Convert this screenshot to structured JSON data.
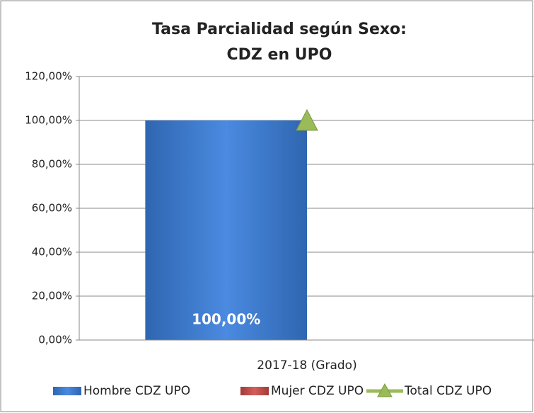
{
  "chart_data": {
    "type": "bar",
    "title": [
      "Tasa Parcialidad según Sexo:",
      "CDZ en UPO"
    ],
    "categories": [
      "2017-18 (Grado)"
    ],
    "series": [
      {
        "name": "Hombre CDZ UPO",
        "type": "bar",
        "color": "#3f7fd1",
        "values": [
          100
        ],
        "value_labels": [
          "100,00%"
        ]
      },
      {
        "name": "Mujer CDZ UPO",
        "type": "bar",
        "color": "#c0504d",
        "values": [
          0
        ]
      },
      {
        "name": "Total CDZ UPO",
        "type": "line",
        "color": "#9bbb59",
        "values": [
          100
        ]
      }
    ],
    "ylim": [
      0,
      120
    ],
    "yticks": [
      {
        "value": 0,
        "label": "0,00%"
      },
      {
        "value": 20,
        "label": "20,00%"
      },
      {
        "value": 40,
        "label": "40,00%"
      },
      {
        "value": 60,
        "label": "60,00%"
      },
      {
        "value": 80,
        "label": "80,00%"
      },
      {
        "value": 100,
        "label": "100,00%"
      },
      {
        "value": 120,
        "label": "120,00%"
      }
    ],
    "grid": true,
    "legend": "bottom"
  }
}
